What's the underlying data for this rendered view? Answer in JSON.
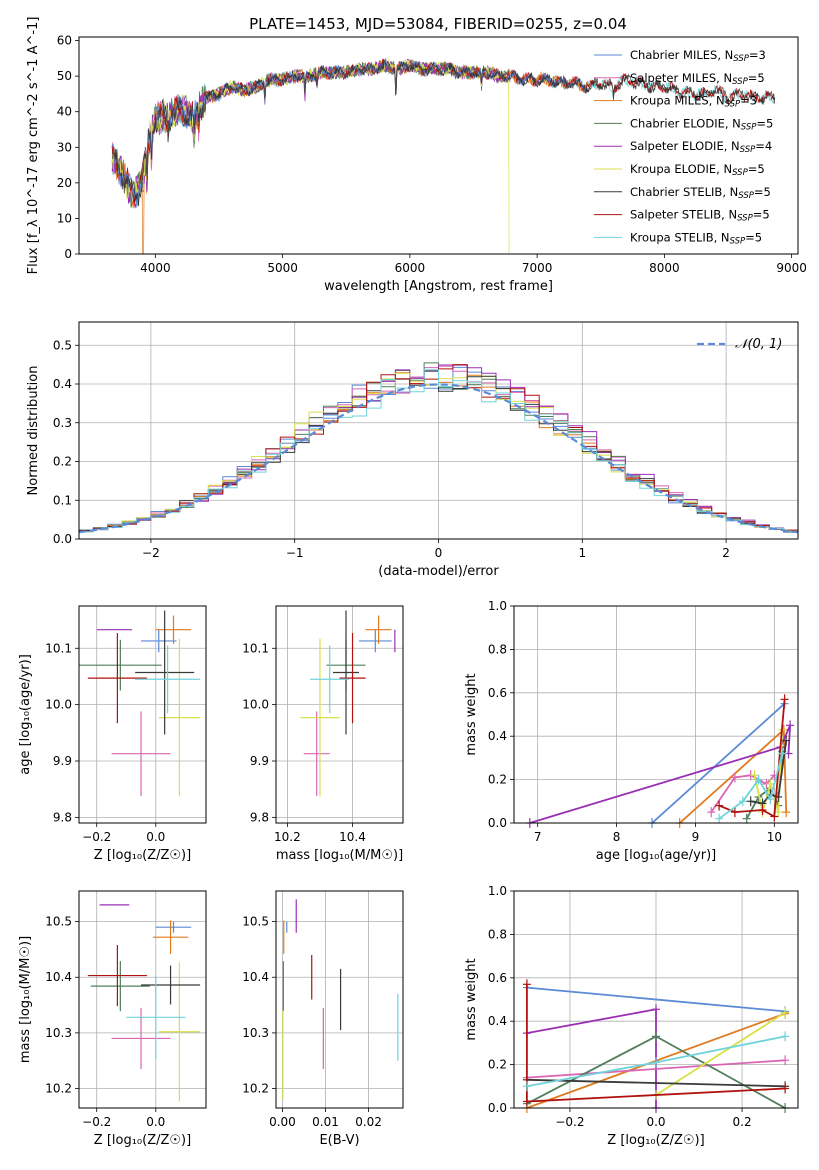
{
  "figure": {
    "title": "PLATE=1453, MJD=53084, FIBERID=0255, z=0.04"
  },
  "colors": {
    "blue": "#5b8ad6",
    "pink": "#d966b3",
    "orange": "#e07a1f",
    "green": "#4f7f5c",
    "purple": "#9a2fb3",
    "yellow": "#d8e04a",
    "dark": "#3a3a3a",
    "red": "#b0120e",
    "cyan": "#6fd3da",
    "normal": "#5b8ad6"
  },
  "chart_data": [
    {
      "id": "spectrum",
      "type": "line",
      "xlabel": "wavelength [Angstrom, rest frame]",
      "ylabel": "Flux [f_λ 10^-17 erg cm^-2 s^-1 A^-1]",
      "xlim": [
        3400,
        9050
      ],
      "ylim": [
        0,
        61
      ],
      "xticks": [
        4000,
        5000,
        6000,
        7000,
        8000,
        9000
      ],
      "yticks": [
        0,
        10,
        20,
        30,
        40,
        50,
        60
      ],
      "legend": "top-right",
      "continuum": {
        "x": [
          3660,
          3700,
          3750,
          3800,
          3850,
          3900,
          3950,
          4000,
          4100,
          4200,
          4300,
          4400,
          4500,
          4600,
          4700,
          4800,
          4900,
          5000,
          5100,
          5200,
          5300,
          5400,
          5500,
          5600,
          5700,
          5800,
          5900,
          6000,
          6100,
          6200,
          6300,
          6400,
          6500,
          6600,
          6700,
          6800,
          6900,
          7000,
          7100,
          7200,
          7300,
          7400,
          7500,
          7600,
          7700,
          7800,
          7900,
          8000,
          8100,
          8200,
          8300,
          8400,
          8500,
          8600,
          8700,
          8800
        ],
        "y": [
          27,
          25,
          22,
          18,
          17,
          21,
          32,
          38,
          39,
          41,
          38,
          44,
          45,
          47,
          46,
          47,
          49,
          49,
          50,
          50,
          51,
          51,
          51,
          52,
          52,
          53,
          52,
          53,
          52,
          52,
          52,
          51,
          51,
          51,
          50,
          50,
          49,
          49,
          49,
          48,
          48,
          47,
          48,
          47,
          49,
          48,
          47,
          47,
          46,
          45,
          45,
          46,
          44,
          45,
          44,
          44
        ]
      },
      "series": [
        {
          "name": "Chabrier MILES, N$_{SSP}$=3",
          "label": "Chabrier MILES, N",
          "n": "3",
          "color": "blue",
          "xmax": 7400
        },
        {
          "name": "Salpeter MILES, N$_{SSP}$=5",
          "label": "Salpeter MILES, N",
          "n": "5",
          "color": "pink",
          "xmax": 7400
        },
        {
          "name": "Kroupa MILES, N$_{SSP}$=3",
          "label": "Kroupa MILES, N",
          "n": "3",
          "color": "orange",
          "xmax": 7400,
          "drops": [
            [
              3900,
              3910
            ],
            [
              7405,
              7420
            ]
          ]
        },
        {
          "name": "Chabrier ELODIE, N$_{SSP}$=5",
          "label": "Chabrier ELODIE, N",
          "n": "5",
          "color": "green",
          "xmax": 6790
        },
        {
          "name": "Salpeter ELODIE, N$_{SSP}$=4",
          "label": "Salpeter ELODIE, N",
          "n": "4",
          "color": "purple",
          "xmax": 6790
        },
        {
          "name": "Kroupa ELODIE, N$_{SSP}$=5",
          "label": "Kroupa ELODIE, N",
          "n": "5",
          "color": "yellow",
          "xmax": 6790,
          "drops": [
            [
              6780,
              6795
            ]
          ]
        },
        {
          "name": "Chabrier STELIB, N$_{SSP}$=5",
          "label": "Chabrier STELIB, N",
          "n": "5",
          "color": "dark",
          "xmax": 8870
        },
        {
          "name": "Salpeter STELIB, N$_{SSP}$=5",
          "label": "Salpeter STELIB, N",
          "n": "5",
          "color": "red",
          "xmax": 8870
        },
        {
          "name": "Kroupa STELIB, N$_{SSP}$=5",
          "label": "Kroupa STELIB, N",
          "n": "5",
          "color": "cyan",
          "xmax": 8870
        }
      ]
    },
    {
      "id": "residuals",
      "type": "line",
      "xlabel": "(data-model)/error",
      "ylabel": "Normed distribution",
      "xlim": [
        -2.5,
        2.5
      ],
      "ylim": [
        0,
        0.56
      ],
      "grid": true,
      "xticks": [
        -2,
        -1,
        0,
        1,
        2
      ],
      "xticklabels": [
        "−2",
        "−1",
        "0",
        "1",
        "2"
      ],
      "yticks": [
        0.0,
        0.1,
        0.2,
        0.3,
        0.4,
        0.5
      ],
      "legend": "top-right",
      "normal_label": "𝒩(0, 1)",
      "bin_width": 0.1,
      "histograms": [
        {
          "color": "blue",
          "amp": 1.04,
          "shift": -0.1
        },
        {
          "color": "pink",
          "amp": 1.06,
          "shift": 0.05
        },
        {
          "color": "orange",
          "amp": 1.02,
          "shift": 0.0
        },
        {
          "color": "green",
          "amp": 1.05,
          "shift": 0.05
        },
        {
          "color": "purple",
          "amp": 1.07,
          "shift": 0.08
        },
        {
          "color": "yellow",
          "amp": 1.05,
          "shift": -0.08
        },
        {
          "color": "dark",
          "amp": 1.03,
          "shift": -0.03
        },
        {
          "color": "red",
          "amp": 1.05,
          "shift": 0.02
        },
        {
          "color": "cyan",
          "amp": 1.0,
          "shift": 0.0
        }
      ]
    },
    {
      "id": "z-age",
      "type": "scatter",
      "xlabel": "Z [log₁₀(Z/Z☉)]",
      "ylabel": "age  [log₁₀(age/yr)]",
      "xlim": [
        -0.26,
        0.17
      ],
      "ylim": [
        9.79,
        10.175
      ],
      "grid": true,
      "xticks": [
        -0.2,
        0.0
      ],
      "xticklabels": [
        "−0.2",
        "0.0"
      ],
      "yticks": [
        9.8,
        9.9,
        10.0,
        10.1
      ],
      "points": [
        {
          "color": "blue",
          "x": 0.01,
          "y": 10.113,
          "xerr": 0.06,
          "yerr": 0.02
        },
        {
          "color": "pink",
          "x": -0.05,
          "y": 9.913,
          "xerr": 0.1,
          "yerr": 0.075
        },
        {
          "color": "orange",
          "x": 0.06,
          "y": 10.133,
          "xerr": 0.06,
          "yerr": 0.025
        },
        {
          "color": "green",
          "x": -0.12,
          "y": 10.07,
          "xerr": 0.14,
          "yerr": 0.045
        },
        {
          "color": "purple",
          "x": -0.14,
          "y": 10.133,
          "xerr": 0.06,
          "yerr": 0.0
        },
        {
          "color": "yellow",
          "x": 0.08,
          "y": 9.977,
          "xerr": 0.07,
          "yerr": 0.14
        },
        {
          "color": "dark",
          "x": 0.03,
          "y": 10.057,
          "xerr": 0.1,
          "yerr": 0.11
        },
        {
          "color": "red",
          "x": -0.13,
          "y": 10.047,
          "xerr": 0.1,
          "yerr": 0.08
        },
        {
          "color": "cyan",
          "x": 0.04,
          "y": 10.045,
          "xerr": 0.11,
          "yerr": 0.06
        }
      ]
    },
    {
      "id": "mass-age",
      "type": "scatter",
      "xlabel": "mass [log₁₀(M/M☉)]",
      "xlim": [
        10.165,
        10.555
      ],
      "ylim": [
        9.79,
        10.175
      ],
      "grid": true,
      "xticks": [
        10.2,
        10.4
      ],
      "xticklabels": [
        "10.2",
        "10.4"
      ],
      "yticks": [
        9.8,
        9.9,
        10.0,
        10.1
      ],
      "points": [
        {
          "color": "blue",
          "x": 10.47,
          "y": 10.113,
          "xerr": 0.05,
          "yerr": 0.02
        },
        {
          "color": "pink",
          "x": 10.29,
          "y": 9.913,
          "xerr": 0.04,
          "yerr": 0.075
        },
        {
          "color": "orange",
          "x": 10.48,
          "y": 10.133,
          "xerr": 0.04,
          "yerr": 0.025
        },
        {
          "color": "green",
          "x": 10.38,
          "y": 10.07,
          "xerr": 0.06,
          "yerr": 0.045
        },
        {
          "color": "purple",
          "x": 10.53,
          "y": 10.113,
          "xerr": 0.0,
          "yerr": 0.02
        },
        {
          "color": "yellow",
          "x": 10.3,
          "y": 9.977,
          "xerr": 0.06,
          "yerr": 0.14
        },
        {
          "color": "dark",
          "x": 10.38,
          "y": 10.057,
          "xerr": 0.04,
          "yerr": 0.11
        },
        {
          "color": "red",
          "x": 10.4,
          "y": 10.047,
          "xerr": 0.04,
          "yerr": 0.08
        },
        {
          "color": "cyan",
          "x": 10.33,
          "y": 10.045,
          "xerr": 0.06,
          "yerr": 0.06
        }
      ]
    },
    {
      "id": "age-weight",
      "type": "line",
      "xlabel": "age  [log₁₀(age/yr)]",
      "ylabel": "mass weight",
      "xlim": [
        6.7,
        10.3
      ],
      "ylim": [
        0,
        1.0
      ],
      "grid": true,
      "xticks": [
        7,
        8,
        9,
        10
      ],
      "yticks": [
        0.0,
        0.2,
        0.4,
        0.6,
        0.8,
        1.0
      ],
      "series": [
        {
          "color": "blue",
          "x": [
            8.45,
            10.13
          ],
          "y": [
            0.0,
            0.55
          ]
        },
        {
          "color": "orange",
          "x": [
            8.8,
            10.12,
            10.15
          ],
          "y": [
            0.0,
            0.43,
            0.05
          ]
        },
        {
          "color": "purple",
          "x": [
            6.9,
            10.08,
            10.2,
            10.18
          ],
          "y": [
            0.0,
            0.35,
            0.45,
            0.32
          ]
        },
        {
          "color": "pink",
          "x": [
            9.2,
            9.5,
            9.7,
            9.9,
            10.0
          ],
          "y": [
            0.05,
            0.21,
            0.22,
            0.18,
            0.22
          ]
        },
        {
          "color": "green",
          "x": [
            9.65,
            9.8,
            9.95,
            10.05,
            10.1
          ],
          "y": [
            0.02,
            0.12,
            0.16,
            0.08,
            0.33
          ]
        },
        {
          "color": "yellow",
          "x": [
            9.75,
            9.85,
            9.95,
            10.05,
            10.1
          ],
          "y": [
            0.22,
            0.05,
            0.18,
            0.05,
            0.43
          ]
        },
        {
          "color": "dark",
          "x": [
            9.7,
            9.85,
            9.95,
            10.05,
            10.15
          ],
          "y": [
            0.1,
            0.09,
            0.13,
            0.12,
            0.38
          ]
        },
        {
          "color": "red",
          "x": [
            9.3,
            9.5,
            9.85,
            10.0,
            10.13
          ],
          "y": [
            0.08,
            0.05,
            0.06,
            0.03,
            0.57
          ]
        },
        {
          "color": "cyan",
          "x": [
            9.3,
            9.6,
            9.8,
            9.95,
            10.1
          ],
          "y": [
            0.02,
            0.1,
            0.2,
            0.11,
            0.32
          ]
        }
      ]
    },
    {
      "id": "z-mass",
      "type": "scatter",
      "xlabel": "Z [log₁₀(Z/Z☉)]",
      "ylabel": "mass [log₁₀(M/M☉)]",
      "xlim": [
        -0.26,
        0.17
      ],
      "ylim": [
        10.165,
        10.555
      ],
      "grid": true,
      "xticks": [
        -0.2,
        0.0
      ],
      "xticklabels": [
        "−0.2",
        "0.0"
      ],
      "yticks": [
        10.2,
        10.3,
        10.4,
        10.5
      ],
      "points": [
        {
          "color": "blue",
          "x": 0.06,
          "y": 10.49,
          "xerr": 0.06,
          "yerr": 0.01
        },
        {
          "color": "pink",
          "x": -0.05,
          "y": 10.29,
          "xerr": 0.1,
          "yerr": 0.055
        },
        {
          "color": "orange",
          "x": 0.05,
          "y": 10.472,
          "xerr": 0.06,
          "yerr": 0.03
        },
        {
          "color": "green",
          "x": -0.12,
          "y": 10.384,
          "xerr": 0.1,
          "yerr": 0.045
        },
        {
          "color": "purple",
          "x": -0.14,
          "y": 10.53,
          "xerr": 0.05,
          "yerr": 0.0
        },
        {
          "color": "yellow",
          "x": 0.08,
          "y": 10.302,
          "xerr": 0.07,
          "yerr": 0.125
        },
        {
          "color": "dark",
          "x": 0.05,
          "y": 10.386,
          "xerr": 0.1,
          "yerr": 0.035
        },
        {
          "color": "red",
          "x": -0.13,
          "y": 10.403,
          "xerr": 0.1,
          "yerr": 0.055
        },
        {
          "color": "cyan",
          "x": 0.0,
          "y": 10.328,
          "xerr": 0.1,
          "yerr": 0.075
        }
      ]
    },
    {
      "id": "ebv-mass",
      "type": "scatter",
      "xlabel": "E(B-V)",
      "xlim": [
        -0.0015,
        0.028
      ],
      "ylim": [
        10.165,
        10.555
      ],
      "grid": true,
      "xticks": [
        0.0,
        0.01,
        0.02
      ],
      "xticklabels": [
        "0.00",
        "0.01",
        "0.02"
      ],
      "yticks": [
        10.2,
        10.3,
        10.4,
        10.5
      ],
      "points": [
        {
          "color": "blue",
          "x": 0.001,
          "y": 10.49,
          "xerr": 0,
          "yerr": 0.01
        },
        {
          "color": "pink",
          "x": 0.0095,
          "y": 10.29,
          "xerr": 0,
          "yerr": 0.055
        },
        {
          "color": "orange",
          "x": 0.0003,
          "y": 10.472,
          "xerr": 0,
          "yerr": 0.03
        },
        {
          "color": "green",
          "x": 0.0002,
          "y": 10.384,
          "xerr": 0,
          "yerr": 0.045
        },
        {
          "color": "purple",
          "x": 0.0032,
          "y": 10.51,
          "xerr": 0,
          "yerr": 0.03
        },
        {
          "color": "yellow",
          "x": 0.0001,
          "y": 10.26,
          "xerr": 0,
          "yerr": 0.08
        },
        {
          "color": "dark",
          "x": 0.0135,
          "y": 10.36,
          "xerr": 0,
          "yerr": 0.055
        },
        {
          "color": "red",
          "x": 0.0068,
          "y": 10.4,
          "xerr": 0,
          "yerr": 0.04
        },
        {
          "color": "cyan",
          "x": 0.0268,
          "y": 10.31,
          "xerr": 0,
          "yerr": 0.06
        }
      ]
    },
    {
      "id": "z-weight",
      "type": "line",
      "xlabel": "Z [log₁₀(Z/Z☉)]",
      "ylabel": "mass weight",
      "xlim": [
        -0.33,
        0.33
      ],
      "ylim": [
        0,
        1.0
      ],
      "grid": true,
      "xticks": [
        -0.2,
        0.0,
        0.2
      ],
      "xticklabels": [
        "−0.2",
        "0.0",
        "0.2"
      ],
      "yticks": [
        0.0,
        0.2,
        0.4,
        0.6,
        0.8,
        1.0
      ],
      "series": [
        {
          "color": "blue",
          "x": [
            -0.3,
            0.3
          ],
          "y": [
            0.555,
            0.445
          ]
        },
        {
          "color": "orange",
          "x": [
            -0.3,
            0.3
          ],
          "y": [
            0.0,
            0.435
          ]
        },
        {
          "color": "purple",
          "x": [
            -0.3,
            0.0,
            0.0
          ],
          "y": [
            0.345,
            0.455,
            0.0
          ]
        },
        {
          "color": "pink",
          "x": [
            -0.3,
            0.3
          ],
          "y": [
            0.14,
            0.22
          ]
        },
        {
          "color": "green",
          "x": [
            -0.3,
            0.0,
            0.3
          ],
          "y": [
            0.02,
            0.33,
            0.0
          ]
        },
        {
          "color": "yellow",
          "x": [
            0.0,
            0.3
          ],
          "y": [
            0.06,
            0.44
          ]
        },
        {
          "color": "dark",
          "x": [
            -0.3,
            0.3
          ],
          "y": [
            0.13,
            0.1
          ]
        },
        {
          "color": "red",
          "x": [
            -0.3,
            -0.3,
            0.3
          ],
          "y": [
            0.57,
            0.03,
            0.09
          ]
        },
        {
          "color": "cyan",
          "x": [
            -0.3,
            0.0,
            0.3
          ],
          "y": [
            0.1,
            0.21,
            0.33
          ]
        }
      ]
    }
  ]
}
